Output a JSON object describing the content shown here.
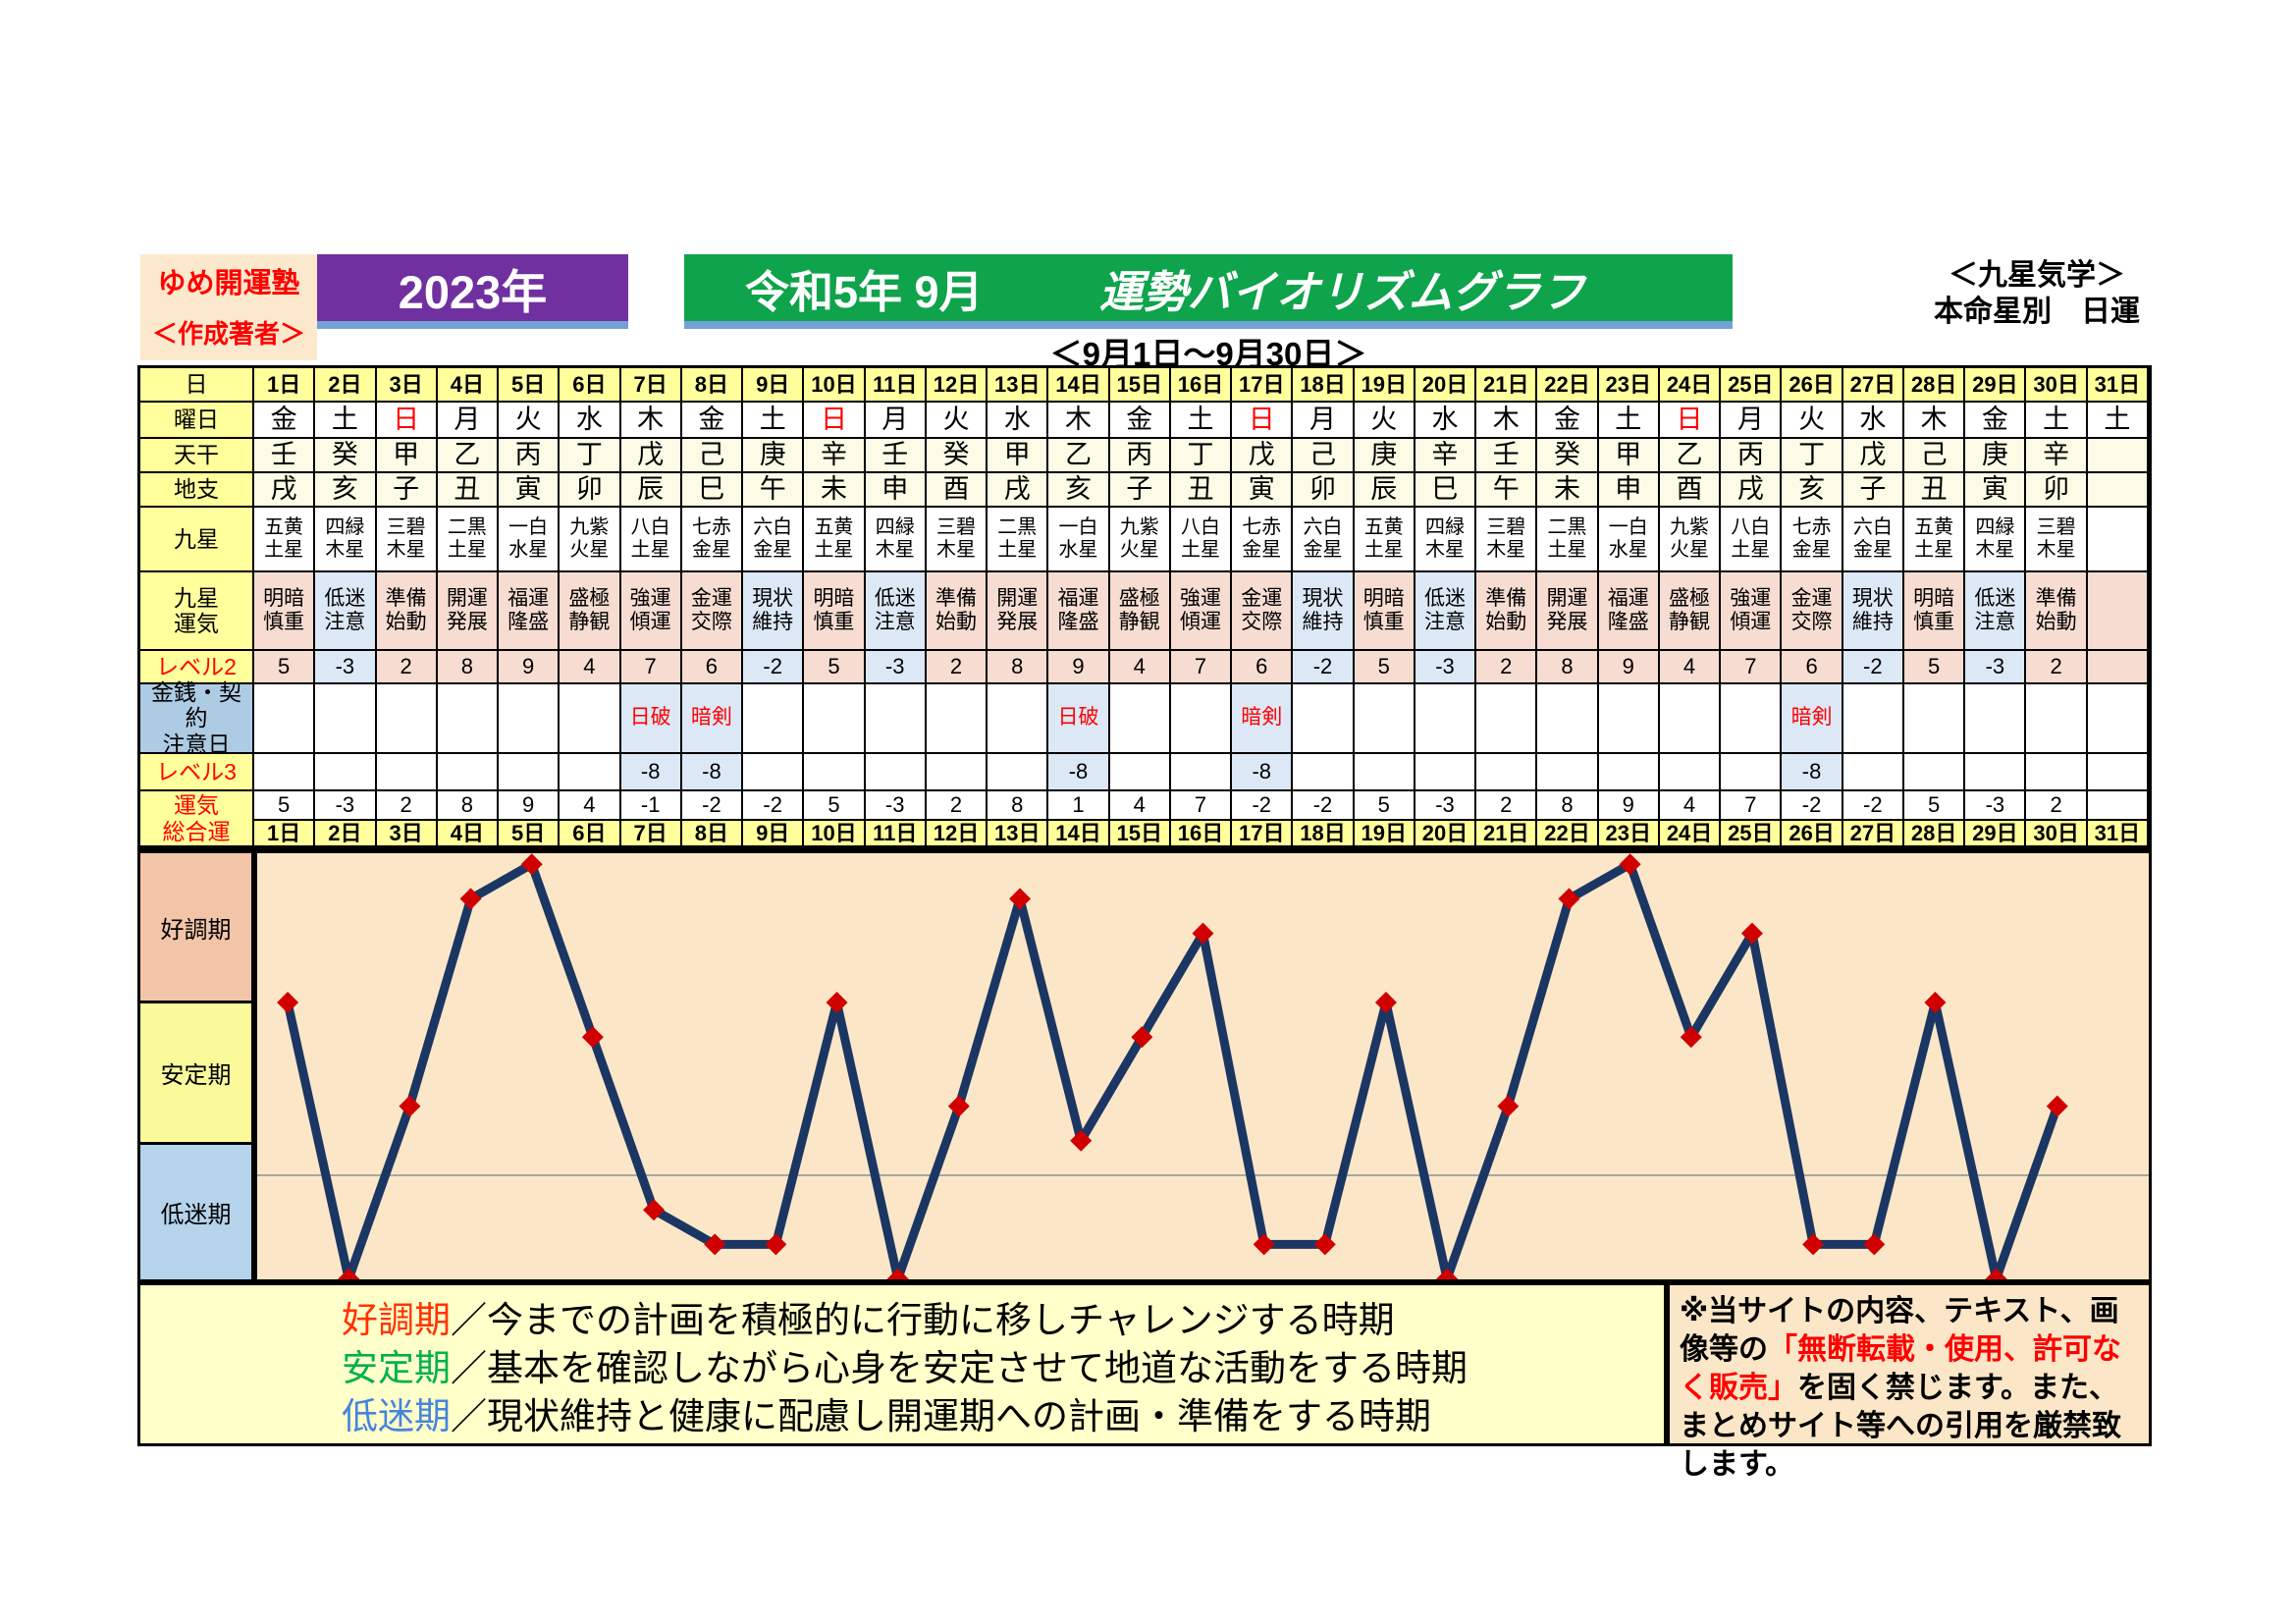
{
  "header": {
    "school": "ゆめ開運塾",
    "author": "＜作成著者＞",
    "year": "2023年",
    "title_left": "令和5年 9月",
    "title_right": "運勢バイオリズムグラフ",
    "subtitle": "＜9月1日～9月30日＞",
    "right_line1": "＜九星気学＞",
    "right_line2": "本命星別　日運"
  },
  "table": {
    "labels": {
      "day": "日",
      "weekday": "曜日",
      "tenkan": "天干",
      "chishi": "地支",
      "kyusei": "九星",
      "kyusei_unki": "九星\n運気",
      "level2": "レベル2",
      "caution": "金銭・契約\n注意日",
      "level3": "レベル3",
      "sogo": "運気\n総合運"
    },
    "days": [
      "1日",
      "2日",
      "3日",
      "4日",
      "5日",
      "6日",
      "7日",
      "8日",
      "9日",
      "10日",
      "11日",
      "12日",
      "13日",
      "14日",
      "15日",
      "16日",
      "17日",
      "18日",
      "19日",
      "20日",
      "21日",
      "22日",
      "23日",
      "24日",
      "25日",
      "26日",
      "27日",
      "28日",
      "29日",
      "30日",
      "31日"
    ],
    "weekday": [
      "金",
      "土",
      "日",
      "月",
      "火",
      "水",
      "木",
      "金",
      "土",
      "日",
      "月",
      "火",
      "水",
      "木",
      "金",
      "土",
      "日",
      "月",
      "火",
      "水",
      "木",
      "金",
      "土",
      "日",
      "月",
      "火",
      "水",
      "木",
      "金",
      "土",
      "土"
    ],
    "sunday_char": "日",
    "tenkan": [
      "壬",
      "癸",
      "甲",
      "乙",
      "丙",
      "丁",
      "戊",
      "己",
      "庚",
      "辛",
      "壬",
      "癸",
      "甲",
      "乙",
      "丙",
      "丁",
      "戊",
      "己",
      "庚",
      "辛",
      "壬",
      "癸",
      "甲",
      "乙",
      "丙",
      "丁",
      "戊",
      "己",
      "庚",
      "辛",
      ""
    ],
    "chishi": [
      "戌",
      "亥",
      "子",
      "丑",
      "寅",
      "卯",
      "辰",
      "巳",
      "午",
      "未",
      "申",
      "酉",
      "戌",
      "亥",
      "子",
      "丑",
      "寅",
      "卯",
      "辰",
      "巳",
      "午",
      "未",
      "申",
      "酉",
      "戌",
      "亥",
      "子",
      "丑",
      "寅",
      "卯",
      ""
    ],
    "kyusei": [
      "五黄土星",
      "四緑木星",
      "三碧木星",
      "二黒土星",
      "一白水星",
      "九紫火星",
      "八白土星",
      "七赤金星",
      "六白金星",
      "五黄土星",
      "四緑木星",
      "三碧木星",
      "二黒土星",
      "一白水星",
      "九紫火星",
      "八白土星",
      "七赤金星",
      "六白金星",
      "五黄土星",
      "四緑木星",
      "三碧木星",
      "二黒土星",
      "一白水星",
      "九紫火星",
      "八白土星",
      "七赤金星",
      "六白金星",
      "五黄土星",
      "四緑木星",
      "三碧木星",
      ""
    ],
    "kyusei_unki": [
      "明暗慎重",
      "低迷注意",
      "準備始動",
      "開運発展",
      "福運隆盛",
      "盛極静観",
      "強運傾運",
      "金運交際",
      "現状維持",
      "明暗慎重",
      "低迷注意",
      "準備始動",
      "開運発展",
      "福運隆盛",
      "盛極静観",
      "強運傾運",
      "金運交際",
      "現状維持",
      "明暗慎重",
      "低迷注意",
      "準備始動",
      "開運発展",
      "福運隆盛",
      "盛極静観",
      "強運傾運",
      "金運交際",
      "現状維持",
      "明暗慎重",
      "低迷注意",
      "準備始動",
      ""
    ],
    "unki_blue_terms": [
      "低迷注意",
      "現状維持"
    ],
    "level2": [
      5,
      -3,
      2,
      8,
      9,
      4,
      7,
      6,
      -2,
      5,
      -3,
      2,
      8,
      9,
      4,
      7,
      6,
      -2,
      5,
      -3,
      2,
      8,
      9,
      4,
      7,
      6,
      -2,
      5,
      -3,
      2,
      null
    ],
    "caution": [
      "",
      "",
      "",
      "",
      "",
      "",
      "日破",
      "暗剣",
      "",
      "",
      "",
      "",
      "",
      "日破",
      "",
      "",
      "暗剣",
      "",
      "",
      "",
      "",
      "",
      "",
      "",
      "",
      "暗剣",
      "",
      "",
      "",
      "",
      ""
    ],
    "level3": [
      null,
      null,
      null,
      null,
      null,
      null,
      -8,
      -8,
      null,
      null,
      null,
      null,
      null,
      -8,
      null,
      null,
      -8,
      null,
      null,
      null,
      null,
      null,
      null,
      null,
      null,
      -8,
      null,
      null,
      null,
      null,
      null
    ],
    "sogo": [
      5,
      -3,
      2,
      8,
      9,
      4,
      -1,
      -2,
      -2,
      5,
      -3,
      2,
      8,
      1,
      4,
      7,
      -2,
      -2,
      5,
      -3,
      2,
      8,
      9,
      4,
      7,
      -2,
      -2,
      5,
      -3,
      2,
      null
    ]
  },
  "zones": [
    {
      "label": "好調期",
      "color": "#F3C5A8"
    },
    {
      "label": "安定期",
      "color": "#FAFA9B"
    },
    {
      "label": "低迷期",
      "color": "#B5D3EB"
    }
  ],
  "legend": {
    "lines": [
      {
        "term": "好調期",
        "color": "#FF3300",
        "desc": "／今までの計画を積極的に行動に移しチャレンジする時期"
      },
      {
        "term": "安定期",
        "color": "#00B050",
        "desc": "／基本を確認しながら心身を安定させて地道な活動をする時期"
      },
      {
        "term": "低迷期",
        "color": "#4485DD",
        "desc": "／現状維持と健康に配慮し開運期への計画・準備をする時期"
      }
    ]
  },
  "copyright": {
    "part1": "※当サイトの内容、テキスト、画像等の",
    "part2": "「無断転載・使用、許可なく販売」",
    "part3": "を固く禁じます。また、まとめサイト等への引用を厳禁致します。"
  },
  "chart_data": {
    "type": "line",
    "title": "令和5年 9月 運勢バイオリズムグラフ",
    "x_categories": [
      "1日",
      "2日",
      "3日",
      "4日",
      "5日",
      "6日",
      "7日",
      "8日",
      "9日",
      "10日",
      "11日",
      "12日",
      "13日",
      "14日",
      "15日",
      "16日",
      "17日",
      "18日",
      "19日",
      "20日",
      "21日",
      "22日",
      "23日",
      "24日",
      "25日",
      "26日",
      "27日",
      "28日",
      "29日",
      "30日"
    ],
    "series": [
      {
        "name": "運気総合運",
        "values": [
          5,
          -3,
          2,
          8,
          9,
          4,
          -1,
          -2,
          -2,
          5,
          -3,
          2,
          8,
          1,
          4,
          7,
          -2,
          -2,
          5,
          -3,
          2,
          8,
          9,
          4,
          7,
          -2,
          -2,
          5,
          -3,
          2
        ]
      }
    ],
    "ylim": [
      -3.2,
      9.3
    ],
    "zero_line": 0,
    "zones": [
      {
        "label": "好調期",
        "value_range": [
          5,
          9.3
        ]
      },
      {
        "label": "安定期",
        "value_range": [
          1,
          5
        ]
      },
      {
        "label": "低迷期",
        "value_range": [
          -3.2,
          1
        ]
      }
    ],
    "grid": false,
    "line_color": "#1B3663",
    "marker": "diamond",
    "marker_color": "#D00000",
    "background_color": "#FBE7C7",
    "zero_line_color": "#A6A6A6"
  }
}
